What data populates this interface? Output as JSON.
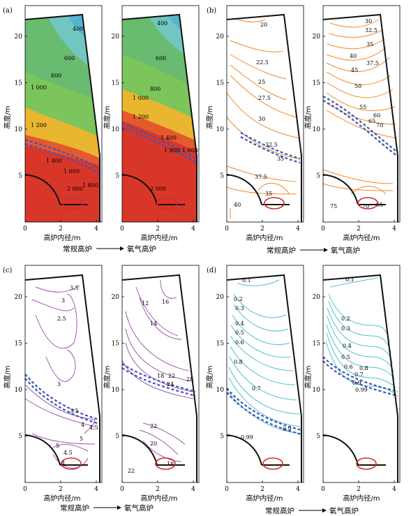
{
  "panels": [
    {
      "label": "(a)",
      "process": "常规高炉"
    },
    {
      "label": "",
      "process": "氧气高炉"
    },
    {
      "label": "(b)",
      "process": "常规高炉"
    },
    {
      "label": "",
      "process": "氧气高炉"
    },
    {
      "label": "(c)",
      "process": "常规高炉"
    },
    {
      "label": "",
      "process": "氧气高炉"
    },
    {
      "label": "(d)",
      "process": "常规高炉"
    },
    {
      "label": "",
      "process": "氧气高炉"
    }
  ],
  "axes": {
    "xlabel": "高炉内径/m",
    "ylabel": "高度/m",
    "xticks": [
      "0",
      "2",
      "4"
    ],
    "yticks": [
      "5",
      "10",
      "15",
      "20"
    ]
  },
  "captions": {
    "a": {
      "left": "常规高炉",
      "right": "氧气高炉"
    },
    "b": {
      "left": "常规高炉",
      "right": "氧气高炉"
    },
    "c": {
      "left": "常规高炉",
      "right": "氧气高炉"
    },
    "d": {
      "left": "常规高炉",
      "right": "氧气高炉"
    }
  },
  "contour_labels": {
    "a_left": [
      "400",
      "600",
      "800",
      "1 000",
      "1 200",
      "1 400",
      "1 600",
      "1 800",
      "2 000"
    ],
    "a_right": [
      "400",
      "600",
      "800",
      "1 000",
      "1 200",
      "1 400",
      "1 600",
      "1 800",
      "2 000"
    ],
    "b_left": [
      "20",
      "22.5",
      "25",
      "27.5",
      "30",
      "32.5",
      "35",
      "37.5",
      "35",
      "40"
    ],
    "b_right": [
      "30",
      "32.5",
      "35",
      "37.5",
      "40",
      "45",
      "50",
      "55",
      "60",
      "65",
      "70",
      "75",
      "70",
      "65"
    ],
    "c_left": [
      "3.5",
      "3",
      "2.5",
      "3",
      "3.5",
      "4",
      "4.5",
      "5",
      "5",
      "4.5",
      "4"
    ],
    "c_right": [
      "16",
      "12",
      "14",
      "18",
      "22",
      "24",
      "28",
      "22",
      "20",
      "22",
      "18"
    ],
    "d_left": [
      "0.1",
      "0.2",
      "0.3",
      "0.4",
      "0.5",
      "0.6",
      "0.8",
      "0.7",
      "0.9",
      "0.99"
    ],
    "d_right": [
      "0.1",
      "0.2",
      "0.3",
      "0.4",
      "0.5",
      "0.6",
      "0.7",
      "0.8",
      "0.9",
      "0.99"
    ]
  },
  "colors": {
    "temperature": [
      "#1f5fb0",
      "#3d86c8",
      "#58b3cf",
      "#72c6c2",
      "#69bb6f",
      "#7cc45c",
      "#e8b62f",
      "#e4592e",
      "#d9362a"
    ],
    "orange_lines": "#f08a2c",
    "purple_lines": "#a356b4",
    "cyan_lines": "#4fc0d0",
    "shaft_boundary_dashed": "#3b55b8",
    "raceway": "#d12a2a"
  }
}
